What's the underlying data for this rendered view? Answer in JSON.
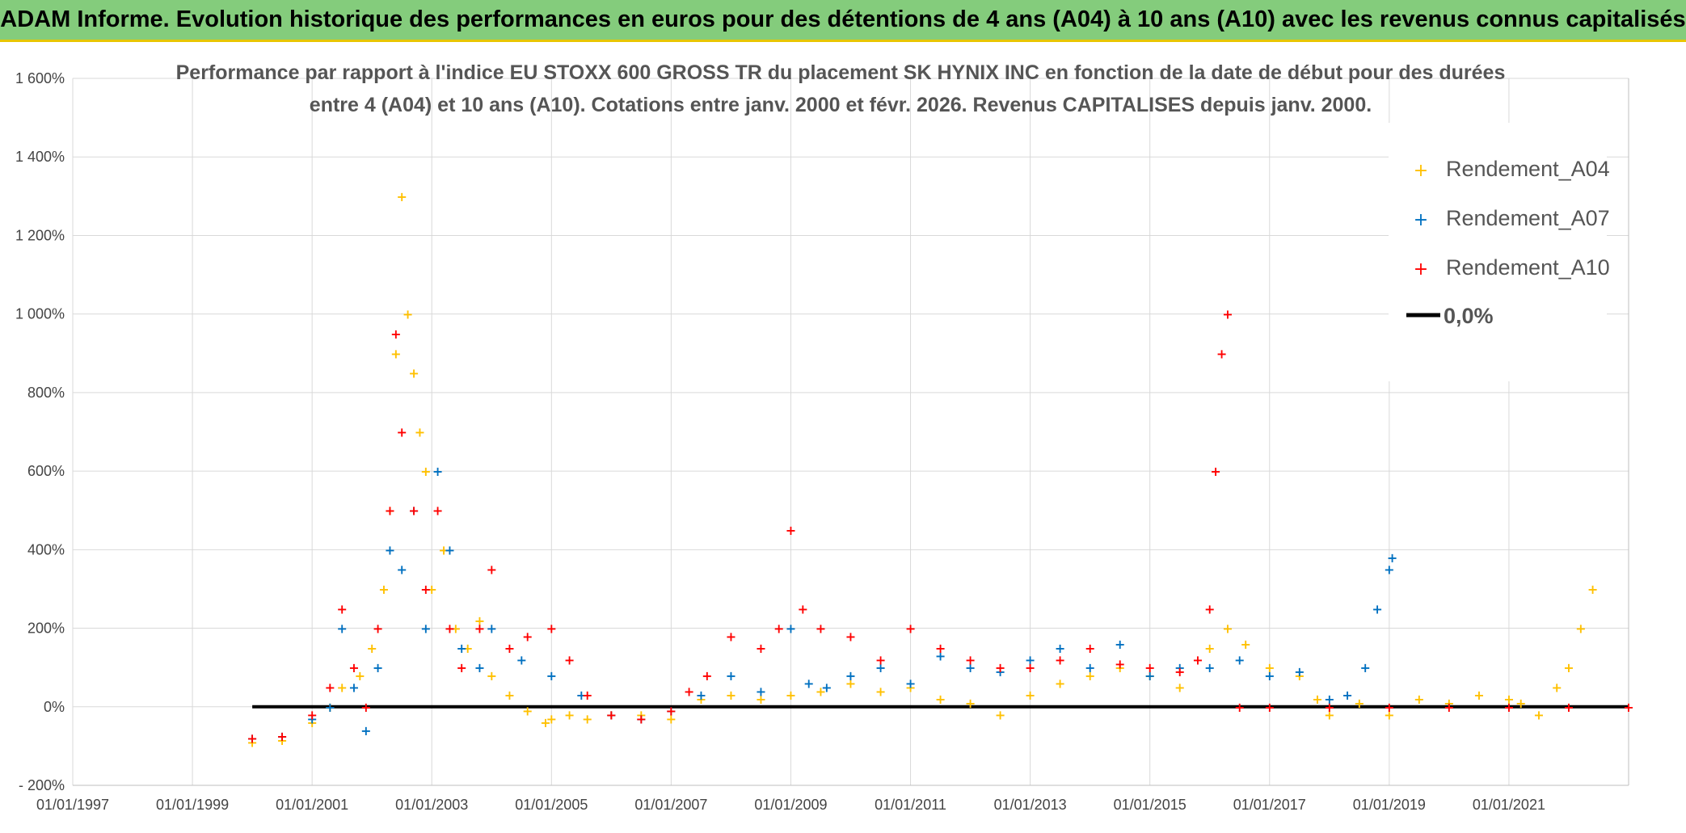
{
  "header": {
    "title": "ADAM Informe. Evolution historique des performances en euros pour des détentions de 4 ans (A04) à 10 ans (A10) avec les revenus connus capitalisés"
  },
  "chart_data": {
    "type": "scatter",
    "title_line1": "Performance par rapport à l'indice EU STOXX 600 GROSS TR  du placement SK HYNIX INC en fonction de la date de début pour des durées",
    "title_line2": "entre 4 (A04) et 10 ans (A10). Cotations entre janv. 2000 et févr. 2026. Revenus CAPITALISES depuis janv. 2000.",
    "x_domain": [
      1997.0,
      2023.0
    ],
    "ylim": [
      -200,
      1600
    ],
    "y_ticks": [
      -200,
      0,
      200,
      400,
      600,
      800,
      1000,
      1200,
      1400,
      1600
    ],
    "y_tick_labels": [
      "- 200%",
      "0%",
      "200%",
      "400%",
      "600%",
      "800%",
      "1 000%",
      "1 200%",
      "1 400%",
      "1 600%"
    ],
    "x_ticks": [
      1997,
      1999,
      2001,
      2003,
      2005,
      2007,
      2009,
      2011,
      2013,
      2015,
      2017,
      2019,
      2021
    ],
    "x_tick_labels": [
      "01/01/1997",
      "01/01/1999",
      "01/01/2001",
      "01/01/2003",
      "01/01/2005",
      "01/01/2007",
      "01/01/2009",
      "01/01/2011",
      "01/01/2013",
      "01/01/2015",
      "01/01/2017",
      "01/01/2019",
      "01/01/2021"
    ],
    "legend": [
      "Rendement_A04",
      "Rendement_A07",
      "Rendement_A10",
      "0,0%"
    ],
    "zero_line": {
      "name": "0,0%",
      "x": [
        2000.0,
        2023.0
      ],
      "y": [
        0,
        0
      ],
      "color": "#000000"
    },
    "series": [
      {
        "name": "Rendement_A04",
        "color": "#ffc000",
        "x": [
          2000.0,
          2000.5,
          2001.0,
          2001.3,
          2001.5,
          2001.8,
          2002.0,
          2002.2,
          2002.3,
          2002.4,
          2002.5,
          2002.6,
          2002.7,
          2002.8,
          2002.9,
          2003.0,
          2003.2,
          2003.4,
          2003.6,
          2003.8,
          2004.0,
          2004.3,
          2004.6,
          2004.9,
          2005.0,
          2005.3,
          2005.6,
          2006.0,
          2006.5,
          2007.0,
          2007.5,
          2008.0,
          2008.5,
          2009.0,
          2009.5,
          2010.0,
          2010.5,
          2011.0,
          2011.5,
          2012.0,
          2012.5,
          2013.0,
          2013.5,
          2014.0,
          2014.5,
          2015.0,
          2015.5,
          2016.0,
          2016.3,
          2016.6,
          2017.0,
          2017.5,
          2017.8,
          2018.0,
          2018.5,
          2019.0,
          2019.5,
          2020.0,
          2020.5,
          2021.0,
          2021.2,
          2021.5,
          2021.8,
          2022.0,
          2022.2,
          2022.4
        ],
        "y": [
          -90,
          -85,
          -40,
          0,
          50,
          80,
          150,
          300,
          500,
          900,
          1300,
          1000,
          850,
          700,
          600,
          300,
          400,
          200,
          150,
          220,
          80,
          30,
          -10,
          -40,
          -30,
          -20,
          -30,
          -20,
          -20,
          -30,
          20,
          30,
          20,
          30,
          40,
          60,
          40,
          50,
          20,
          10,
          -20,
          30,
          60,
          80,
          100,
          80,
          50,
          150,
          200,
          160,
          100,
          80,
          20,
          -20,
          10,
          -20,
          20,
          10,
          30,
          20,
          10,
          -20,
          50,
          100,
          200,
          300
        ]
      },
      {
        "name": "Rendement_A07",
        "color": "#0070c0",
        "x": [
          2000.0,
          2000.5,
          2001.0,
          2001.3,
          2001.5,
          2001.7,
          2001.9,
          2002.1,
          2002.3,
          2002.5,
          2002.7,
          2002.9,
          2003.1,
          2003.3,
          2003.5,
          2003.8,
          2004.0,
          2004.5,
          2005.0,
          2005.5,
          2006.0,
          2006.5,
          2007.0,
          2007.5,
          2008.0,
          2008.5,
          2009.0,
          2009.3,
          2009.6,
          2010.0,
          2010.5,
          2011.0,
          2011.5,
          2012.0,
          2012.5,
          2013.0,
          2013.5,
          2014.0,
          2014.5,
          2015.0,
          2015.5,
          2016.0,
          2016.5,
          2017.0,
          2017.5,
          2018.0,
          2018.3,
          2018.6,
          2018.8,
          2019.0,
          2019.05
        ],
        "y": [
          -80,
          -75,
          -30,
          0,
          200,
          50,
          -60,
          100,
          400,
          350,
          500,
          200,
          600,
          400,
          150,
          100,
          200,
          120,
          80,
          30,
          -20,
          -30,
          -10,
          30,
          80,
          40,
          200,
          60,
          50,
          80,
          100,
          60,
          130,
          100,
          90,
          120,
          150,
          100,
          160,
          80,
          100,
          100,
          120,
          80,
          90,
          20,
          30,
          100,
          250,
          350,
          380
        ]
      },
      {
        "name": "Rendement_A10",
        "color": "#ff0000",
        "x": [
          2000.0,
          2000.5,
          2001.0,
          2001.3,
          2001.5,
          2001.7,
          2001.9,
          2002.1,
          2002.3,
          2002.4,
          2002.5,
          2002.7,
          2002.9,
          2003.1,
          2003.3,
          2003.5,
          2003.8,
          2004.0,
          2004.3,
          2004.6,
          2005.0,
          2005.3,
          2005.6,
          2006.0,
          2006.5,
          2007.0,
          2007.3,
          2007.6,
          2008.0,
          2008.5,
          2008.8,
          2009.0,
          2009.2,
          2009.5,
          2010.0,
          2010.5,
          2011.0,
          2011.5,
          2012.0,
          2012.5,
          2013.0,
          2013.5,
          2014.0,
          2014.5,
          2015.0,
          2015.5,
          2015.8,
          2016.0,
          2016.1,
          2016.2,
          2016.3,
          2016.5,
          2017.0,
          2018.0,
          2019.0,
          2020.0,
          2021.0,
          2022.0,
          2023.0
        ],
        "y": [
          -80,
          -75,
          -20,
          50,
          250,
          100,
          0,
          200,
          500,
          950,
          700,
          500,
          300,
          500,
          200,
          100,
          200,
          350,
          150,
          180,
          200,
          120,
          30,
          -20,
          -30,
          -10,
          40,
          80,
          180,
          150,
          200,
          450,
          250,
          200,
          180,
          120,
          200,
          150,
          120,
          100,
          100,
          120,
          150,
          110,
          100,
          90,
          120,
          250,
          600,
          900,
          1000,
          0,
          0,
          0,
          0,
          0,
          0,
          0,
          0
        ]
      }
    ]
  }
}
